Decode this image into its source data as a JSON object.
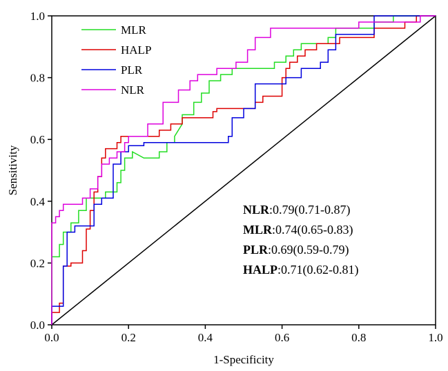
{
  "chart_data": {
    "type": "line",
    "title": "",
    "xlabel": "1-Specificity",
    "ylabel": "Sensitivity",
    "xlim": [
      0.0,
      1.0
    ],
    "ylim": [
      0.0,
      1.0
    ],
    "x_ticks": [
      "0.0",
      "0.2",
      "0.4",
      "0.6",
      "0.8",
      "1.0"
    ],
    "y_ticks": [
      "0.0",
      "0.2",
      "0.4",
      "0.6",
      "0.8",
      "1.0"
    ],
    "grid": false,
    "legend_position": "top-left",
    "reference_line": [
      [
        0,
        0
      ],
      [
        1,
        1
      ]
    ],
    "series": [
      {
        "name": "MLR",
        "color": "#22dd22",
        "points": [
          [
            0,
            0
          ],
          [
            0,
            0.22
          ],
          [
            0.02,
            0.22
          ],
          [
            0.02,
            0.26
          ],
          [
            0.03,
            0.26
          ],
          [
            0.03,
            0.3
          ],
          [
            0.05,
            0.3
          ],
          [
            0.05,
            0.33
          ],
          [
            0.07,
            0.33
          ],
          [
            0.07,
            0.37
          ],
          [
            0.09,
            0.37
          ],
          [
            0.09,
            0.41
          ],
          [
            0.14,
            0.41
          ],
          [
            0.14,
            0.43
          ],
          [
            0.17,
            0.43
          ],
          [
            0.17,
            0.46
          ],
          [
            0.18,
            0.46
          ],
          [
            0.18,
            0.5
          ],
          [
            0.19,
            0.5
          ],
          [
            0.19,
            0.54
          ],
          [
            0.21,
            0.54
          ],
          [
            0.21,
            0.56
          ],
          [
            0.24,
            0.54
          ],
          [
            0.28,
            0.54
          ],
          [
            0.28,
            0.56
          ],
          [
            0.3,
            0.56
          ],
          [
            0.3,
            0.59
          ],
          [
            0.32,
            0.59
          ],
          [
            0.32,
            0.61
          ],
          [
            0.34,
            0.65
          ],
          [
            0.34,
            0.68
          ],
          [
            0.37,
            0.68
          ],
          [
            0.37,
            0.72
          ],
          [
            0.39,
            0.72
          ],
          [
            0.39,
            0.75
          ],
          [
            0.41,
            0.75
          ],
          [
            0.41,
            0.79
          ],
          [
            0.44,
            0.79
          ],
          [
            0.44,
            0.81
          ],
          [
            0.47,
            0.81
          ],
          [
            0.47,
            0.83
          ],
          [
            0.58,
            0.83
          ],
          [
            0.58,
            0.85
          ],
          [
            0.61,
            0.85
          ],
          [
            0.61,
            0.87
          ],
          [
            0.63,
            0.87
          ],
          [
            0.63,
            0.89
          ],
          [
            0.65,
            0.89
          ],
          [
            0.65,
            0.91
          ],
          [
            0.72,
            0.91
          ],
          [
            0.72,
            0.93
          ],
          [
            0.74,
            0.93
          ],
          [
            0.74,
            0.96
          ],
          [
            0.79,
            0.96
          ],
          [
            0.84,
            0.96
          ],
          [
            0.84,
            0.98
          ],
          [
            0.89,
            0.98
          ],
          [
            0.89,
            1.0
          ],
          [
            1,
            1
          ]
        ]
      },
      {
        "name": "HALP",
        "color": "#dd0000",
        "points": [
          [
            0,
            0
          ],
          [
            0,
            0.04
          ],
          [
            0.02,
            0.04
          ],
          [
            0.02,
            0.07
          ],
          [
            0.03,
            0.07
          ],
          [
            0.03,
            0.19
          ],
          [
            0.05,
            0.19
          ],
          [
            0.05,
            0.2
          ],
          [
            0.08,
            0.2
          ],
          [
            0.08,
            0.24
          ],
          [
            0.09,
            0.24
          ],
          [
            0.09,
            0.31
          ],
          [
            0.1,
            0.31
          ],
          [
            0.1,
            0.37
          ],
          [
            0.11,
            0.37
          ],
          [
            0.11,
            0.43
          ],
          [
            0.12,
            0.43
          ],
          [
            0.12,
            0.48
          ],
          [
            0.13,
            0.48
          ],
          [
            0.13,
            0.54
          ],
          [
            0.14,
            0.54
          ],
          [
            0.14,
            0.57
          ],
          [
            0.17,
            0.57
          ],
          [
            0.17,
            0.59
          ],
          [
            0.18,
            0.59
          ],
          [
            0.18,
            0.61
          ],
          [
            0.28,
            0.61
          ],
          [
            0.28,
            0.63
          ],
          [
            0.31,
            0.63
          ],
          [
            0.31,
            0.65
          ],
          [
            0.34,
            0.65
          ],
          [
            0.34,
            0.67
          ],
          [
            0.42,
            0.67
          ],
          [
            0.42,
            0.69
          ],
          [
            0.43,
            0.69
          ],
          [
            0.43,
            0.7
          ],
          [
            0.53,
            0.7
          ],
          [
            0.53,
            0.72
          ],
          [
            0.55,
            0.72
          ],
          [
            0.55,
            0.74
          ],
          [
            0.6,
            0.74
          ],
          [
            0.6,
            0.8
          ],
          [
            0.61,
            0.8
          ],
          [
            0.61,
            0.83
          ],
          [
            0.62,
            0.83
          ],
          [
            0.62,
            0.85
          ],
          [
            0.64,
            0.85
          ],
          [
            0.64,
            0.87
          ],
          [
            0.66,
            0.87
          ],
          [
            0.66,
            0.89
          ],
          [
            0.69,
            0.89
          ],
          [
            0.69,
            0.91
          ],
          [
            0.75,
            0.91
          ],
          [
            0.75,
            0.93
          ],
          [
            0.84,
            0.93
          ],
          [
            0.84,
            0.96
          ],
          [
            0.92,
            0.96
          ],
          [
            0.92,
            0.98
          ],
          [
            0.95,
            0.98
          ],
          [
            0.95,
            1.0
          ],
          [
            1,
            1
          ]
        ]
      },
      {
        "name": "PLR",
        "color": "#0000dd",
        "points": [
          [
            0,
            0
          ],
          [
            0,
            0.06
          ],
          [
            0.03,
            0.06
          ],
          [
            0.03,
            0.19
          ],
          [
            0.04,
            0.19
          ],
          [
            0.04,
            0.3
          ],
          [
            0.06,
            0.3
          ],
          [
            0.06,
            0.32
          ],
          [
            0.11,
            0.32
          ],
          [
            0.11,
            0.39
          ],
          [
            0.13,
            0.39
          ],
          [
            0.13,
            0.41
          ],
          [
            0.16,
            0.41
          ],
          [
            0.16,
            0.52
          ],
          [
            0.18,
            0.52
          ],
          [
            0.18,
            0.56
          ],
          [
            0.2,
            0.56
          ],
          [
            0.2,
            0.58
          ],
          [
            0.24,
            0.58
          ],
          [
            0.24,
            0.59
          ],
          [
            0.46,
            0.59
          ],
          [
            0.46,
            0.61
          ],
          [
            0.47,
            0.61
          ],
          [
            0.47,
            0.67
          ],
          [
            0.5,
            0.67
          ],
          [
            0.5,
            0.7
          ],
          [
            0.53,
            0.7
          ],
          [
            0.53,
            0.78
          ],
          [
            0.61,
            0.78
          ],
          [
            0.61,
            0.8
          ],
          [
            0.65,
            0.8
          ],
          [
            0.65,
            0.83
          ],
          [
            0.7,
            0.83
          ],
          [
            0.7,
            0.85
          ],
          [
            0.72,
            0.85
          ],
          [
            0.72,
            0.89
          ],
          [
            0.74,
            0.89
          ],
          [
            0.74,
            0.94
          ],
          [
            0.84,
            0.94
          ],
          [
            0.84,
            1.0
          ],
          [
            1,
            1
          ]
        ]
      },
      {
        "name": "NLR",
        "color": "#dd00dd",
        "points": [
          [
            0,
            0
          ],
          [
            0,
            0.33
          ],
          [
            0.01,
            0.33
          ],
          [
            0.01,
            0.35
          ],
          [
            0.02,
            0.35
          ],
          [
            0.02,
            0.37
          ],
          [
            0.03,
            0.37
          ],
          [
            0.03,
            0.39
          ],
          [
            0.08,
            0.39
          ],
          [
            0.08,
            0.41
          ],
          [
            0.1,
            0.41
          ],
          [
            0.1,
            0.44
          ],
          [
            0.12,
            0.44
          ],
          [
            0.12,
            0.48
          ],
          [
            0.13,
            0.48
          ],
          [
            0.13,
            0.52
          ],
          [
            0.15,
            0.52
          ],
          [
            0.15,
            0.54
          ],
          [
            0.17,
            0.54
          ],
          [
            0.17,
            0.56
          ],
          [
            0.19,
            0.56
          ],
          [
            0.19,
            0.59
          ],
          [
            0.2,
            0.59
          ],
          [
            0.2,
            0.61
          ],
          [
            0.25,
            0.61
          ],
          [
            0.25,
            0.65
          ],
          [
            0.29,
            0.65
          ],
          [
            0.29,
            0.72
          ],
          [
            0.33,
            0.72
          ],
          [
            0.33,
            0.76
          ],
          [
            0.36,
            0.76
          ],
          [
            0.36,
            0.79
          ],
          [
            0.38,
            0.79
          ],
          [
            0.38,
            0.81
          ],
          [
            0.43,
            0.81
          ],
          [
            0.43,
            0.83
          ],
          [
            0.48,
            0.83
          ],
          [
            0.48,
            0.85
          ],
          [
            0.51,
            0.85
          ],
          [
            0.51,
            0.89
          ],
          [
            0.53,
            0.89
          ],
          [
            0.53,
            0.93
          ],
          [
            0.57,
            0.93
          ],
          [
            0.57,
            0.96
          ],
          [
            0.8,
            0.96
          ],
          [
            0.8,
            0.98
          ],
          [
            0.96,
            0.98
          ],
          [
            0.96,
            1.0
          ],
          [
            1,
            1
          ]
        ]
      }
    ],
    "annotations": [
      {
        "name": "NLR",
        "value": ":0.79(0.71-0.87)"
      },
      {
        "name": "MLR",
        "value": ":0.74(0.65-0.83)"
      },
      {
        "name": "PLR",
        "value": ":0.69(0.59-0.79)"
      },
      {
        "name": "HALP",
        "value": ":0.71(0.62-0.81)"
      }
    ]
  }
}
